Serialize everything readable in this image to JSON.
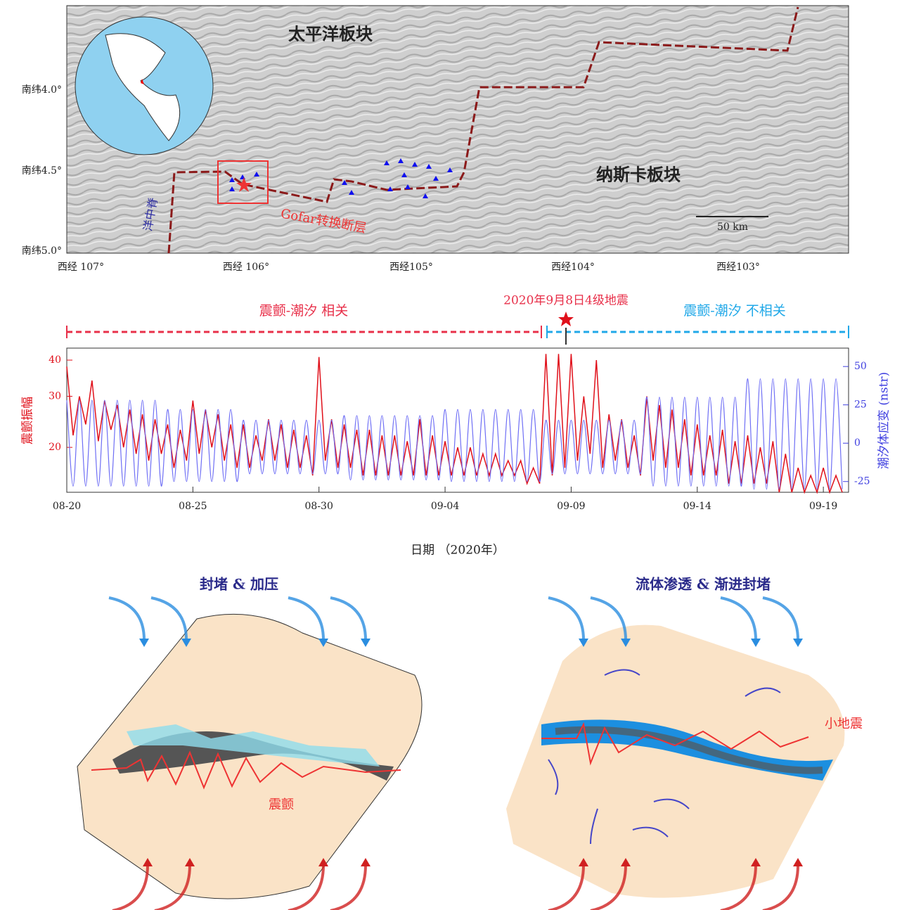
{
  "map": {
    "plate_north": "太平洋板块",
    "plate_south": "纳斯卡板块",
    "ridge": "洋中脊",
    "fault": "Gofar转换断层",
    "scale": "50 km",
    "lat_labels": [
      "南纬4.0°",
      "南纬4.5°",
      "南纬5.0°"
    ],
    "lon_labels": [
      "西经 107°",
      "西经 106°",
      "西经105°",
      "西经104°",
      "西经103°"
    ]
  },
  "chart_data": {
    "type": "line",
    "xlabel": "日期 （2020年）",
    "ylabel": "震颤振幅",
    "y2label": "潮汐体应变 (nstr)",
    "annotations": [
      "震颤-潮汐 相关",
      "2020年9月8日4级地震",
      "震颤-潮汐 不相关"
    ],
    "xlim": [
      0,
      31
    ],
    "xticks": [
      {
        "value": 0,
        "label": "08-20"
      },
      {
        "value": 5,
        "label": "08-25"
      },
      {
        "value": 10,
        "label": "08-30"
      },
      {
        "value": 15,
        "label": "09-04"
      },
      {
        "value": 20,
        "label": "09-09"
      },
      {
        "value": 25,
        "label": "09-14"
      },
      {
        "value": 30,
        "label": "09-19"
      }
    ],
    "ylog": true,
    "ylim": [
      14,
      44
    ],
    "yticks": [
      20,
      30,
      40
    ],
    "y2lim": [
      -32,
      62
    ],
    "y2ticks": [
      -25,
      0,
      25,
      50
    ],
    "x": [
      0,
      0.25,
      0.5,
      0.75,
      1,
      1.25,
      1.5,
      1.75,
      2,
      2.25,
      2.5,
      2.75,
      3,
      3.25,
      3.5,
      3.75,
      4,
      4.25,
      4.5,
      4.75,
      5,
      5.25,
      5.5,
      5.75,
      6,
      6.25,
      6.5,
      6.75,
      7,
      7.25,
      7.5,
      7.75,
      8,
      8.25,
      8.5,
      8.75,
      9,
      9.25,
      9.5,
      9.75,
      10,
      10.25,
      10.5,
      10.75,
      11,
      11.25,
      11.5,
      11.75,
      12,
      12.25,
      12.5,
      12.75,
      13,
      13.25,
      13.5,
      13.75,
      14,
      14.25,
      14.5,
      14.75,
      15,
      15.25,
      15.5,
      15.75,
      16,
      16.25,
      16.5,
      16.75,
      17,
      17.25,
      17.5,
      17.75,
      18,
      18.25,
      18.5,
      18.75,
      19,
      19.25,
      19.5,
      19.75,
      20,
      20.25,
      20.5,
      20.75,
      21,
      21.25,
      21.5,
      21.75,
      22,
      22.25,
      22.5,
      22.75,
      23,
      23.25,
      23.5,
      23.75,
      24,
      24.25,
      24.5,
      24.75,
      25,
      25.25,
      25.5,
      25.75,
      26,
      26.25,
      26.5,
      26.75,
      27,
      27.25,
      27.5,
      27.75,
      28,
      28.25,
      28.5,
      28.75,
      29,
      29.25,
      29.5,
      29.75,
      30,
      30.25,
      30.5,
      30.75
    ],
    "series": [
      {
        "color": "#e0101a",
        "values": [
          38,
          22,
          30,
          24,
          34,
          21,
          29,
          23,
          28,
          20,
          27,
          19,
          26,
          18,
          25,
          19,
          24,
          17,
          23,
          18,
          29,
          19,
          27,
          20,
          26,
          18,
          24,
          17,
          24,
          17,
          22,
          18,
          25,
          18,
          24,
          17,
          23,
          17,
          22,
          16,
          41,
          18,
          25,
          17,
          24,
          17,
          23,
          16,
          23,
          16,
          22,
          16,
          22,
          16,
          21,
          16,
          25,
          16,
          22,
          16,
          21,
          16,
          20,
          16,
          20,
          16,
          19,
          16,
          19,
          16,
          18,
          16,
          18,
          15,
          17,
          15,
          42,
          16,
          42,
          17,
          42,
          18,
          30,
          19,
          40,
          17,
          26,
          18,
          25,
          17,
          22,
          16,
          30,
          18,
          28,
          17,
          27,
          17,
          25,
          16,
          24,
          16,
          22,
          16,
          23,
          15,
          21,
          15,
          22,
          15,
          20,
          15,
          21,
          14,
          19,
          14,
          17,
          14,
          16,
          14,
          17,
          14,
          16,
          14
        ]
      },
      {
        "color": "#6f6ff5",
        "axis": "y2",
        "values": [
          28,
          -28,
          28,
          -28,
          28,
          -28,
          28,
          -28,
          28,
          -28,
          28,
          -28,
          28,
          -28,
          28,
          -28,
          22,
          -25,
          22,
          -25,
          22,
          -25,
          22,
          -25,
          22,
          -25,
          22,
          -25,
          15,
          -20,
          15,
          -20,
          15,
          -20,
          15,
          -20,
          15,
          -20,
          15,
          -20,
          15,
          -20,
          15,
          -20,
          18,
          -24,
          18,
          -24,
          18,
          -24,
          18,
          -24,
          18,
          -24,
          18,
          -24,
          18,
          -24,
          18,
          -24,
          22,
          -25,
          22,
          -25,
          22,
          -25,
          22,
          -25,
          22,
          -25,
          22,
          -25,
          22,
          -25,
          22,
          -25,
          15,
          -20,
          15,
          -20,
          15,
          -20,
          15,
          -20,
          15,
          -20,
          15,
          -20,
          15,
          -20,
          15,
          -20,
          30,
          -28,
          30,
          -28,
          30,
          -28,
          30,
          -28,
          30,
          -28,
          30,
          -28,
          30,
          -28,
          30,
          -28,
          42,
          -30,
          42,
          -30,
          42,
          -30,
          42,
          -30,
          42,
          -30,
          42,
          -30,
          42,
          -30,
          42,
          -30
        ]
      }
    ]
  },
  "diagrams": {
    "left_title": "封堵 & 加压",
    "right_title": "流体渗透 & 渐进封堵",
    "left_label": "震颤",
    "right_label": "小地震"
  }
}
